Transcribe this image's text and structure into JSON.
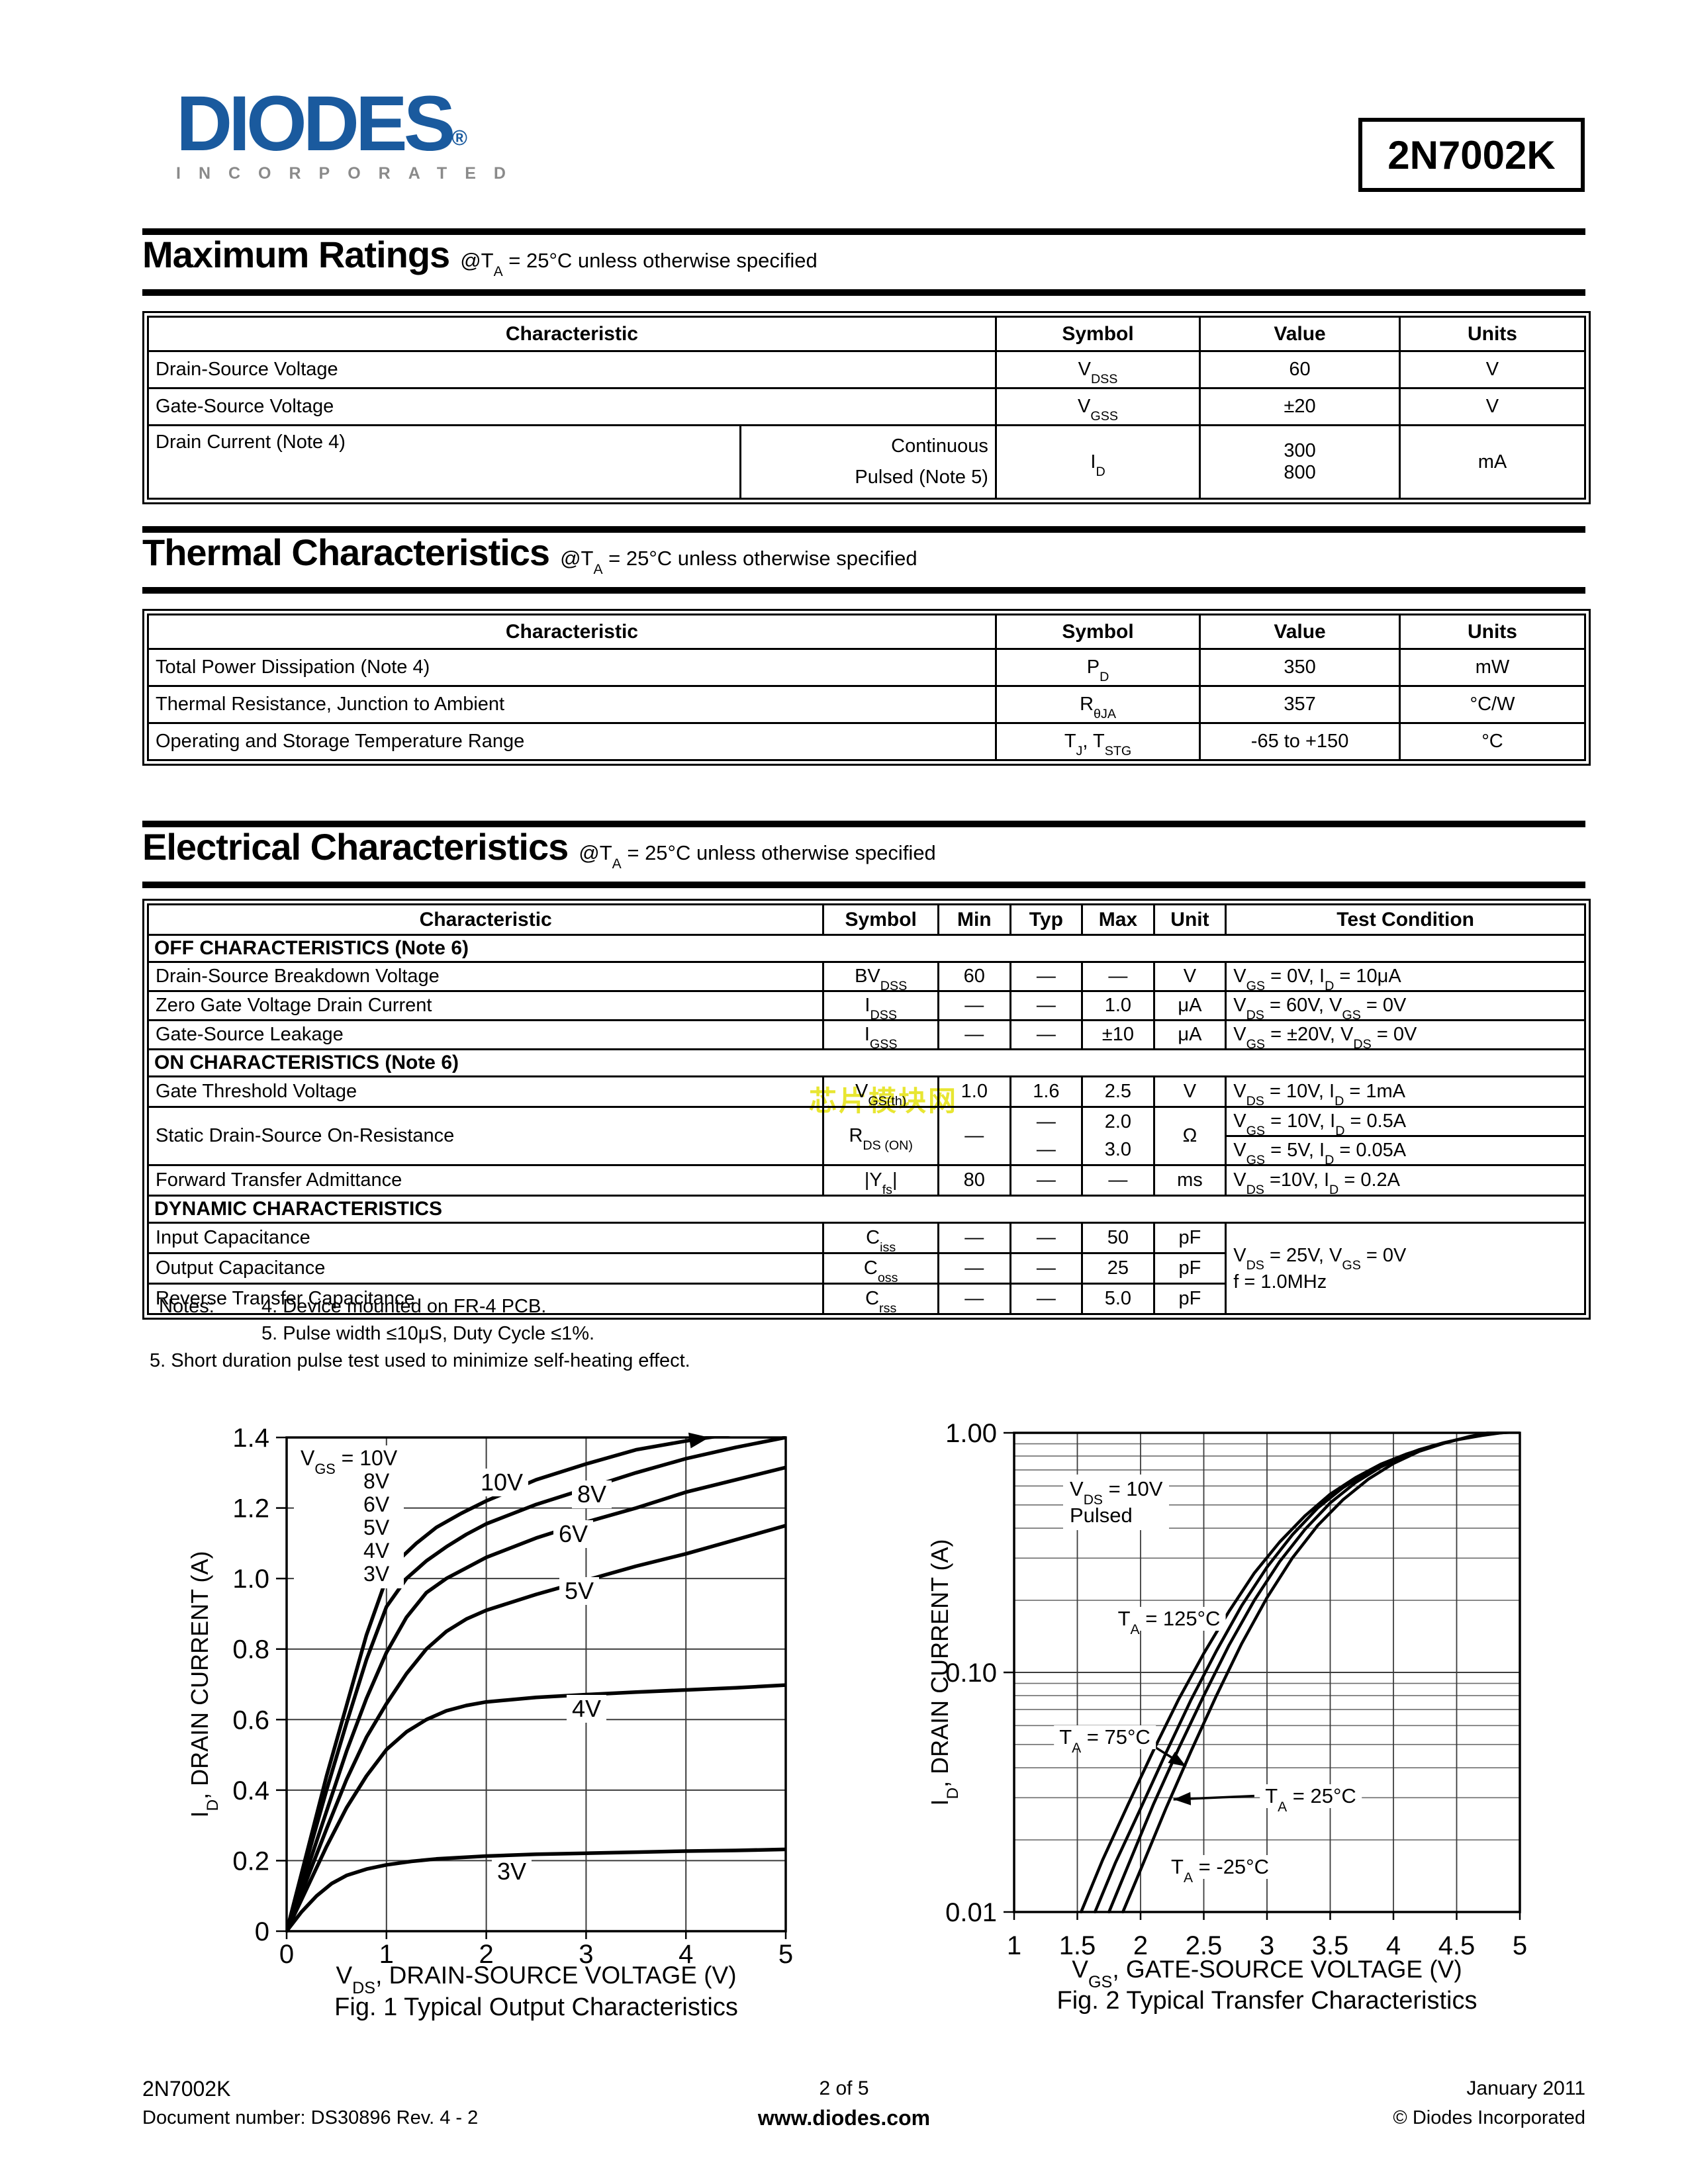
{
  "header": {
    "logo": {
      "name": "DIODES",
      "registered": "®",
      "subtext": "INCORPORATED",
      "color": "#1a5a9e",
      "sub_color": "#8a8a8a"
    },
    "part_number": "2N7002K"
  },
  "max_ratings": {
    "title": "Maximum Ratings",
    "subtitle": "@T~A~ = 25°C unless otherwise specified",
    "headers": [
      "Characteristic",
      "Symbol",
      "Value",
      "Units"
    ],
    "rows": [
      {
        "c": "Drain-Source Voltage",
        "s": "V~DSS~",
        "v": "60",
        "u": "V"
      },
      {
        "c": "Gate-Source Voltage",
        "s": "V~GSS~",
        "v": "±20",
        "u": "V"
      },
      {
        "c": "Drain Current (Note 4)",
        "sub1": "Continuous",
        "sub2": "Pulsed (Note 5)",
        "s": "I~D~",
        "v1": "300",
        "v2": "800",
        "u": "mA"
      }
    ]
  },
  "thermal": {
    "title": "Thermal Characteristics",
    "subtitle": "@T~A~ = 25°C unless otherwise specified",
    "headers": [
      "Characteristic",
      "Symbol",
      "Value",
      "Units"
    ],
    "rows": [
      {
        "c": "Total Power Dissipation (Note 4)",
        "s": "P~D~",
        "v": "350",
        "u": "mW"
      },
      {
        "c": "Thermal Resistance, Junction to Ambient",
        "s": "R~θJA~",
        "v": "357",
        "u": "°C/W"
      },
      {
        "c": "Operating and Storage Temperature Range",
        "s": "T~J~, T~STG~",
        "v": "-65 to +150",
        "u": "°C"
      }
    ]
  },
  "electrical": {
    "title": "Electrical Characteristics",
    "subtitle": "@T~A~ = 25°C unless otherwise specified",
    "headers": [
      "Characteristic",
      "Symbol",
      "Min",
      "Typ",
      "Max",
      "Unit",
      "Test Condition"
    ],
    "sections": {
      "off": "OFF CHARACTERISTICS (Note 6)",
      "on": "ON CHARACTERISTICS (Note 6)",
      "dyn": "DYNAMIC CHARACTERISTICS"
    },
    "rows": [
      {
        "c": "Drain-Source Breakdown Voltage",
        "s": "BV~DSS~",
        "min": "60",
        "typ": "—",
        "max": "—",
        "u": "V",
        "cond": "V~GS~ = 0V, I~D~ = 10μA"
      },
      {
        "c": "Zero Gate Voltage Drain Current",
        "s": "I~DSS~",
        "min": "—",
        "typ": "—",
        "max": "1.0",
        "u": "μA",
        "cond": "V~DS~ = 60V, V~GS~ = 0V"
      },
      {
        "c": "Gate-Source Leakage",
        "s": "I~GSS~",
        "min": "—",
        "typ": "—",
        "max": "±10",
        "u": "μA",
        "cond": "V~GS~ = ±20V, V~DS~ = 0V"
      },
      {
        "c": "Gate Threshold Voltage",
        "s": "V~GS(th)~",
        "min": "1.0",
        "typ": "1.6",
        "max": "2.5",
        "u": "V",
        "cond": "V~DS~ = 10V, I~D~ = 1mA"
      },
      {
        "c": "Static Drain-Source On-Resistance",
        "s": "R~DS (ON)~",
        "min": "—",
        "typ1": "—",
        "typ2": "—",
        "max1": "2.0",
        "max2": "3.0",
        "u": "Ω",
        "cond1": "V~GS~ = 10V, I~D~ = 0.5A",
        "cond2": "V~GS~ = 5V, I~D~ = 0.05A"
      },
      {
        "c": "Forward Transfer Admittance",
        "s": "|Y~fs~|",
        "min": "80",
        "typ": "—",
        "max": "—",
        "u": "ms",
        "cond": "V~DS~ =10V, I~D~ = 0.2A"
      },
      {
        "c": "Input Capacitance",
        "s": "C~iss~",
        "min": "—",
        "typ": "—",
        "max": "50",
        "u": "pF",
        "cond1": "V~DS~ = 25V, V~GS~ = 0V",
        "cond2": "f = 1.0MHz"
      },
      {
        "c": "Output Capacitance",
        "s": "C~oss~",
        "min": "—",
        "typ": "—",
        "max": "25",
        "u": "pF"
      },
      {
        "c": "Reverse Transfer Capacitance",
        "s": "C~rss~",
        "min": "—",
        "typ": "—",
        "max": "5.0",
        "u": "pF"
      }
    ]
  },
  "notes": {
    "label": "Notes:",
    "n4": "4. Device mounted on FR-4 PCB.",
    "n5a": "5. Pulse width ≤10μS, Duty Cycle ≤1%.",
    "n5b": "5. Short duration pulse test used to minimize self-heating effect."
  },
  "watermark": {
    "text": "芯片模块网",
    "color": "#e8e632"
  },
  "chart_data": [
    {
      "type": "line",
      "title": "Fig. 1  Typical Output Characteristics",
      "xlabel": "V~DS~, DRAIN-SOURCE VOLTAGE (V)",
      "ylabel": "I~D~, DRAIN CURRENT (A)",
      "xlim": [
        0,
        5
      ],
      "ylim": [
        0,
        1.4
      ],
      "xticks": [
        0,
        1,
        2,
        3,
        4,
        5
      ],
      "xtick_labels": [
        "0",
        "1",
        "2",
        "3",
        "4",
        "5"
      ],
      "yticks": [
        0,
        0.2,
        0.4,
        0.6,
        0.8,
        1.0,
        1.2,
        1.4
      ],
      "ytick_labels": [
        "0",
        "0.2",
        "0.4",
        "0.6",
        "0.8",
        "1.0",
        "1.2",
        "1.4"
      ],
      "grid": true,
      "legend_title": "V~GS~ = 10V",
      "legend_items": [
        "8V",
        "6V",
        "5V",
        "4V",
        "3V"
      ],
      "curve_labels": [
        {
          "text": "10V"
        },
        {
          "text": "8V"
        },
        {
          "text": "6V"
        },
        {
          "text": "5V"
        },
        {
          "text": "4V"
        },
        {
          "text": "3V"
        }
      ],
      "series": [
        {
          "name": "VGS = 10V",
          "arrow_top": true,
          "points": [
            [
              0,
              0
            ],
            [
              0.2,
              0.22
            ],
            [
              0.4,
              0.44
            ],
            [
              0.6,
              0.64
            ],
            [
              0.8,
              0.84
            ],
            [
              1,
              1.0
            ],
            [
              1.15,
              1.06
            ],
            [
              1.3,
              1.1
            ],
            [
              1.5,
              1.145
            ],
            [
              1.75,
              1.185
            ],
            [
              2,
              1.22
            ],
            [
              2.5,
              1.28
            ],
            [
              3,
              1.325
            ],
            [
              3.5,
              1.365
            ],
            [
              4,
              1.39
            ],
            [
              4.35,
              1.405
            ],
            [
              4.6,
              1.415
            ]
          ]
        },
        {
          "name": "VGS = 8V",
          "points": [
            [
              0,
              0
            ],
            [
              0.2,
              0.2
            ],
            [
              0.4,
              0.4
            ],
            [
              0.6,
              0.59
            ],
            [
              0.8,
              0.77
            ],
            [
              1,
              0.92
            ],
            [
              1.2,
              1.0
            ],
            [
              1.4,
              1.05
            ],
            [
              1.6,
              1.09
            ],
            [
              1.8,
              1.125
            ],
            [
              2,
              1.155
            ],
            [
              2.5,
              1.21
            ],
            [
              3,
              1.255
            ],
            [
              3.5,
              1.3
            ],
            [
              4,
              1.34
            ],
            [
              4.5,
              1.372
            ],
            [
              5,
              1.4
            ]
          ]
        },
        {
          "name": "VGS = 6V",
          "points": [
            [
              0,
              0
            ],
            [
              0.2,
              0.17
            ],
            [
              0.4,
              0.34
            ],
            [
              0.6,
              0.51
            ],
            [
              0.8,
              0.66
            ],
            [
              1,
              0.79
            ],
            [
              1.2,
              0.89
            ],
            [
              1.4,
              0.96
            ],
            [
              1.6,
              1.0
            ],
            [
              1.8,
              1.03
            ],
            [
              2,
              1.06
            ],
            [
              2.5,
              1.115
            ],
            [
              3,
              1.16
            ],
            [
              3.5,
              1.2
            ],
            [
              4,
              1.245
            ],
            [
              4.5,
              1.28
            ],
            [
              5,
              1.315
            ]
          ]
        },
        {
          "name": "VGS = 5V",
          "points": [
            [
              0,
              0
            ],
            [
              0.2,
              0.145
            ],
            [
              0.4,
              0.29
            ],
            [
              0.6,
              0.43
            ],
            [
              0.8,
              0.55
            ],
            [
              1,
              0.645
            ],
            [
              1.2,
              0.73
            ],
            [
              1.4,
              0.8
            ],
            [
              1.6,
              0.85
            ],
            [
              1.8,
              0.885
            ],
            [
              2,
              0.91
            ],
            [
              2.5,
              0.955
            ],
            [
              3,
              0.995
            ],
            [
              3.5,
              1.035
            ],
            [
              4,
              1.07
            ],
            [
              4.5,
              1.11
            ],
            [
              5,
              1.15
            ]
          ]
        },
        {
          "name": "VGS = 4V",
          "points": [
            [
              0,
              0
            ],
            [
              0.2,
              0.12
            ],
            [
              0.4,
              0.24
            ],
            [
              0.6,
              0.35
            ],
            [
              0.8,
              0.44
            ],
            [
              1,
              0.515
            ],
            [
              1.2,
              0.565
            ],
            [
              1.4,
              0.6
            ],
            [
              1.6,
              0.625
            ],
            [
              1.8,
              0.64
            ],
            [
              2,
              0.65
            ],
            [
              2.5,
              0.663
            ],
            [
              3,
              0.671
            ],
            [
              3.5,
              0.678
            ],
            [
              4,
              0.684
            ],
            [
              4.5,
              0.69
            ],
            [
              5,
              0.698
            ]
          ]
        },
        {
          "name": "VGS = 3V",
          "points": [
            [
              0,
              0
            ],
            [
              0.15,
              0.055
            ],
            [
              0.3,
              0.1
            ],
            [
              0.45,
              0.135
            ],
            [
              0.6,
              0.158
            ],
            [
              0.8,
              0.176
            ],
            [
              1,
              0.188
            ],
            [
              1.25,
              0.198
            ],
            [
              1.5,
              0.205
            ],
            [
              2,
              0.213
            ],
            [
              2.5,
              0.218
            ],
            [
              3,
              0.221
            ],
            [
              3.5,
              0.224
            ],
            [
              4,
              0.227
            ],
            [
              4.5,
              0.229
            ],
            [
              5,
              0.232
            ]
          ]
        }
      ]
    },
    {
      "type": "line",
      "yscale": "log",
      "title": "Fig. 2  Typical Transfer Characteristics",
      "xlabel": "V~GS~, GATE-SOURCE VOLTAGE (V)",
      "ylabel": "I~D~, DRAIN CURRENT (A)",
      "xlim": [
        1,
        5
      ],
      "ylim": [
        0.01,
        1
      ],
      "xticks": [
        1,
        1.5,
        2,
        2.5,
        3,
        3.5,
        4,
        4.5,
        5
      ],
      "xtick_labels": [
        "1",
        "1.5",
        "2",
        "2.5",
        "3",
        "3.5",
        "4",
        "4.5",
        "5"
      ],
      "yticks": [
        1,
        0.1,
        0.01
      ],
      "ytick_labels": [
        "1.00",
        "0.10",
        "0.01"
      ],
      "grid": true,
      "annotations": [
        {
          "text": "V~DS~ = 10V"
        },
        {
          "text": "Pulsed"
        },
        {
          "text": "T~A~ = 125°C"
        },
        {
          "text": "T~A~ = 75°C"
        },
        {
          "text": "T~A~ = 25°C"
        },
        {
          "text": "T~A~ = -25°C"
        }
      ],
      "arrows": [
        {
          "from": [
            2.03,
            0.052
          ],
          "to": [
            2.36,
            0.0405
          ]
        },
        {
          "from": [
            2.9,
            0.0305
          ],
          "to": [
            2.26,
            0.0295
          ]
        }
      ],
      "series": [
        {
          "name": "TA = 125°C",
          "points": [
            [
              1.53,
              0.01
            ],
            [
              1.7,
              0.0165
            ],
            [
              1.9,
              0.028
            ],
            [
              2.1,
              0.047
            ],
            [
              2.3,
              0.077
            ],
            [
              2.5,
              0.12
            ],
            [
              2.7,
              0.18
            ],
            [
              2.9,
              0.26
            ],
            [
              3.1,
              0.35
            ],
            [
              3.3,
              0.45
            ],
            [
              3.5,
              0.555
            ],
            [
              3.7,
              0.65
            ],
            [
              3.9,
              0.74
            ],
            [
              4.1,
              0.815
            ],
            [
              4.3,
              0.88
            ],
            [
              4.5,
              0.935
            ],
            [
              4.7,
              0.975
            ],
            [
              4.85,
              1.0
            ],
            [
              5,
              1.01
            ]
          ]
        },
        {
          "name": "TA = 75°C",
          "points": [
            [
              1.64,
              0.01
            ],
            [
              1.8,
              0.016
            ],
            [
              2,
              0.027
            ],
            [
              2.2,
              0.046
            ],
            [
              2.4,
              0.077
            ],
            [
              2.6,
              0.123
            ],
            [
              2.8,
              0.19
            ],
            [
              3,
              0.275
            ],
            [
              3.2,
              0.375
            ],
            [
              3.4,
              0.485
            ],
            [
              3.6,
              0.59
            ],
            [
              3.8,
              0.69
            ],
            [
              4,
              0.775
            ],
            [
              4.2,
              0.85
            ],
            [
              4.4,
              0.91
            ],
            [
              4.6,
              0.96
            ],
            [
              4.8,
              0.995
            ],
            [
              5,
              1.015
            ]
          ]
        },
        {
          "name": "TA = 25°C",
          "points": [
            [
              1.75,
              0.01
            ],
            [
              1.92,
              0.0165
            ],
            [
              2.1,
              0.028
            ],
            [
              2.3,
              0.048
            ],
            [
              2.5,
              0.08
            ],
            [
              2.7,
              0.13
            ],
            [
              2.9,
              0.2
            ],
            [
              3.1,
              0.29
            ],
            [
              3.3,
              0.395
            ],
            [
              3.5,
              0.51
            ],
            [
              3.7,
              0.62
            ],
            [
              3.9,
              0.72
            ],
            [
              4.1,
              0.805
            ],
            [
              4.3,
              0.875
            ],
            [
              4.5,
              0.935
            ],
            [
              4.7,
              0.985
            ],
            [
              4.85,
              1.01
            ],
            [
              5,
              1.02
            ]
          ]
        },
        {
          "name": "TA = -25°C",
          "points": [
            [
              1.86,
              0.01
            ],
            [
              2,
              0.015
            ],
            [
              2.2,
              0.027
            ],
            [
              2.4,
              0.047
            ],
            [
              2.6,
              0.08
            ],
            [
              2.8,
              0.132
            ],
            [
              3,
              0.205
            ],
            [
              3.2,
              0.3
            ],
            [
              3.4,
              0.41
            ],
            [
              3.6,
              0.525
            ],
            [
              3.8,
              0.64
            ],
            [
              4,
              0.745
            ],
            [
              4.2,
              0.835
            ],
            [
              4.4,
              0.905
            ],
            [
              4.6,
              0.965
            ],
            [
              4.75,
              1.0
            ],
            [
              4.9,
              1.02
            ],
            [
              5,
              1.025
            ]
          ]
        }
      ]
    }
  ],
  "footer": {
    "part": "2N7002K",
    "doc": "Document number: DS30896 Rev. 4 - 2",
    "page": "2 of 5",
    "site": "www.diodes.com",
    "date": "January 2011",
    "copyright": "© Diodes Incorporated"
  }
}
